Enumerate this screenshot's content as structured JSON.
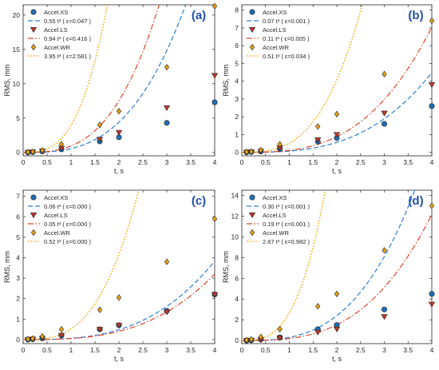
{
  "figure": {
    "colors": {
      "XS": "#1f6fb5",
      "LS": "#c0392b",
      "WR": "#e8a317",
      "fitXS": "#2e7dd1",
      "fitLS": "#e0452a",
      "fitWR": "#f0a500",
      "panel_label": "#1f4fb0"
    }
  },
  "chart_data": [
    {
      "type": "scatter",
      "panel_label": "(a)",
      "xlabel": "t, s",
      "ylabel": "RMS, mm",
      "xlim": [
        0,
        4
      ],
      "ylim": [
        -0.5,
        21.5
      ],
      "xticks": [
        "0",
        "0.5",
        "1",
        "1.5",
        "2",
        "2.5",
        "3",
        "3.5",
        "4"
      ],
      "yticks": [
        "0",
        "5",
        "10",
        "15",
        "20"
      ],
      "ytick_values": [
        0,
        5,
        10,
        15,
        20
      ],
      "legend_position": "top-left",
      "x": [
        0.1,
        0.2,
        0.4,
        0.8,
        1.6,
        2.0,
        3.0,
        4.0
      ],
      "series": [
        {
          "name": "Accel.XS",
          "marker": "circle",
          "values": [
            0.0,
            0.05,
            0.15,
            0.45,
            1.6,
            2.2,
            4.3,
            7.3
          ]
        },
        {
          "name": "Accel.LS",
          "marker": "triangle-down",
          "values": [
            0.0,
            0.05,
            0.2,
            0.6,
            1.9,
            2.9,
            6.5,
            11.2
          ]
        },
        {
          "name": "Accel.WR",
          "marker": "diamond",
          "values": [
            0.05,
            0.1,
            0.3,
            1.2,
            4.0,
            6.0,
            12.4,
            21.3
          ]
        }
      ],
      "fits": [
        {
          "name": "0.55 t³ ( ε=0.047 )",
          "coef": 0.55,
          "style": "dashed"
        },
        {
          "name": "0.94 t³ ( ε=0.416 )",
          "coef": 0.94,
          "style": "dashdot"
        },
        {
          "name": "3.95 t³ ( ε=2.581 )",
          "coef": 3.95,
          "style": "dotted"
        }
      ]
    },
    {
      "type": "scatter",
      "panel_label": "(b)",
      "xlabel": "t, s",
      "ylabel": "RMS, mm",
      "xlim": [
        0,
        4
      ],
      "ylim": [
        -0.2,
        8.3
      ],
      "xticks": [
        "0",
        "0.5",
        "1",
        "1.5",
        "2",
        "2.5",
        "3",
        "3.5",
        "4"
      ],
      "yticks": [
        "0",
        "1",
        "2",
        "3",
        "4",
        "5",
        "6",
        "7",
        "8"
      ],
      "ytick_values": [
        0,
        1,
        2,
        3,
        4,
        5,
        6,
        7,
        8
      ],
      "legend_position": "top-left",
      "x": [
        0.1,
        0.2,
        0.4,
        0.8,
        1.6,
        2.0,
        3.0,
        4.0
      ],
      "series": [
        {
          "name": "Accel.XS",
          "marker": "circle",
          "values": [
            0.0,
            0.02,
            0.05,
            0.2,
            0.6,
            0.8,
            1.6,
            2.6
          ]
        },
        {
          "name": "Accel.LS",
          "marker": "triangle-down",
          "values": [
            0.0,
            0.02,
            0.06,
            0.25,
            0.7,
            1.0,
            2.2,
            3.8
          ]
        },
        {
          "name": "Accel.WR",
          "marker": "diamond",
          "values": [
            0.02,
            0.04,
            0.12,
            0.45,
            1.45,
            2.15,
            4.4,
            7.4
          ]
        }
      ],
      "fits": [
        {
          "name": "0.07 t³ ( ε=0.001 )",
          "coef": 0.07,
          "style": "dashed"
        },
        {
          "name": "0.11 t³ ( ε=0.005 )",
          "coef": 0.11,
          "style": "dashdot"
        },
        {
          "name": "0.51 t³ ( ε=0.034 )",
          "coef": 0.51,
          "style": "dotted"
        }
      ]
    },
    {
      "type": "scatter",
      "panel_label": "(c)",
      "xlabel": "t, s",
      "ylabel": "RMS, mm",
      "xlim": [
        0,
        4
      ],
      "ylim": [
        -0.2,
        7.3
      ],
      "xticks": [
        "0",
        "0.5",
        "1",
        "1.5",
        "2",
        "2.5",
        "3",
        "3.5",
        "4"
      ],
      "yticks": [
        "0",
        "1",
        "2",
        "3",
        "4",
        "5",
        "6",
        "7"
      ],
      "ytick_values": [
        0,
        1,
        2,
        3,
        4,
        5,
        6,
        7
      ],
      "legend_position": "top-left",
      "x": [
        0.1,
        0.2,
        0.4,
        0.8,
        1.6,
        2.0,
        3.0,
        4.0
      ],
      "series": [
        {
          "name": "Accel.XS",
          "marker": "circle",
          "values": [
            0.0,
            0.02,
            0.06,
            0.2,
            0.5,
            0.7,
            1.4,
            2.2
          ]
        },
        {
          "name": "Accel.LS",
          "marker": "triangle-down",
          "values": [
            0.0,
            0.02,
            0.06,
            0.2,
            0.5,
            0.7,
            1.35,
            2.2
          ]
        },
        {
          "name": "Accel.WR",
          "marker": "diamond",
          "values": [
            0.02,
            0.05,
            0.15,
            0.5,
            1.45,
            2.05,
            3.8,
            5.9
          ]
        }
      ],
      "fits": [
        {
          "name": "0.06 t³ ( ε=0.000 )",
          "coef": 0.06,
          "style": "dashed"
        },
        {
          "name": "0.05 t³ ( ε=0.000 )",
          "coef": 0.05,
          "style": "dashdot"
        },
        {
          "name": "0.52 t³ ( ε=0.000 )",
          "coef": 0.52,
          "style": "dotted"
        }
      ]
    },
    {
      "type": "scatter",
      "panel_label": "(d)",
      "xlabel": "t, s",
      "ylabel": "RMS, mm",
      "xlim": [
        0,
        4
      ],
      "ylim": [
        -0.3,
        14.5
      ],
      "xticks": [
        "0",
        "0.5",
        "1",
        "1.5",
        "2",
        "2.5",
        "3",
        "3.5",
        "4"
      ],
      "yticks": [
        "0",
        "2",
        "4",
        "6",
        "8",
        "10",
        "12",
        "14"
      ],
      "ytick_values": [
        0,
        2,
        4,
        6,
        8,
        10,
        12,
        14
      ],
      "legend_position": "top-left",
      "x": [
        0.1,
        0.2,
        0.4,
        0.8,
        1.6,
        2.0,
        3.0,
        4.0
      ],
      "series": [
        {
          "name": "Accel.XS",
          "marker": "circle",
          "values": [
            0.0,
            0.03,
            0.1,
            0.3,
            1.1,
            1.5,
            3.0,
            4.5
          ]
        },
        {
          "name": "Accel.LS",
          "marker": "triangle-down",
          "values": [
            0.0,
            0.02,
            0.08,
            0.25,
            0.8,
            1.1,
            2.3,
            3.5
          ]
        },
        {
          "name": "Accel.WR",
          "marker": "diamond",
          "values": [
            0.05,
            0.1,
            0.35,
            1.1,
            3.3,
            4.5,
            8.7,
            13.0
          ]
        }
      ],
      "fits": [
        {
          "name": "0.30 t³ ( ε=0.001 )",
          "coef": 0.3,
          "style": "dashed"
        },
        {
          "name": "0.19 t³ ( ε=0.001 )",
          "coef": 0.19,
          "style": "dashdot"
        },
        {
          "name": "2.67 t³ ( ε=0.982 )",
          "coef": 2.67,
          "style": "dotted"
        }
      ]
    }
  ]
}
